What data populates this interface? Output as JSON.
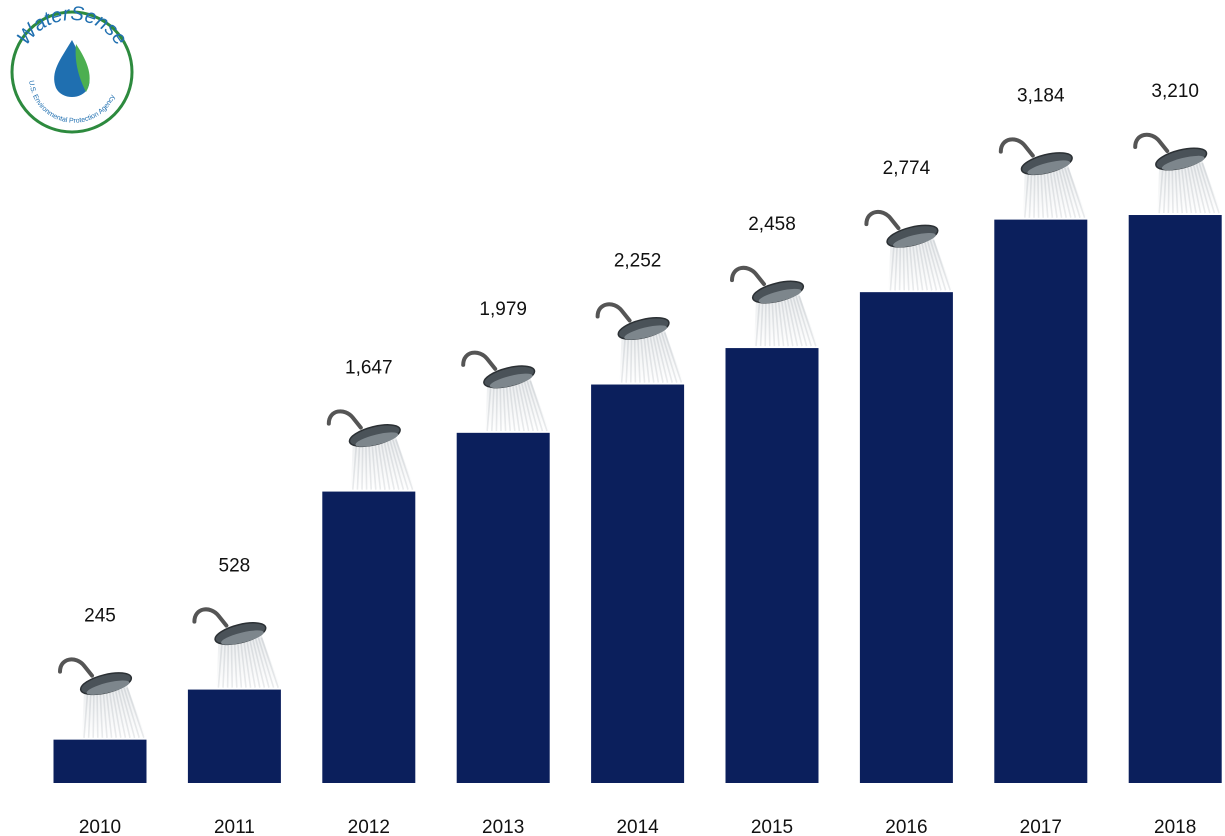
{
  "logo": {
    "brand": "WaterSense",
    "agency": "U.S. Environmental Protection Agency"
  },
  "chart_data": {
    "type": "bar",
    "categories": [
      "2010",
      "2011",
      "2012",
      "2013",
      "2014",
      "2015",
      "2016",
      "2017",
      "2018"
    ],
    "values": [
      245,
      528,
      1647,
      1979,
      2252,
      2458,
      2774,
      3184,
      3210
    ],
    "value_labels": [
      "245",
      "528",
      "1,647",
      "1,979",
      "2,252",
      "2,458",
      "2,774",
      "3,184",
      "3,210"
    ],
    "color": "#0b1f5c",
    "ylim": [
      0,
      3500
    ]
  }
}
